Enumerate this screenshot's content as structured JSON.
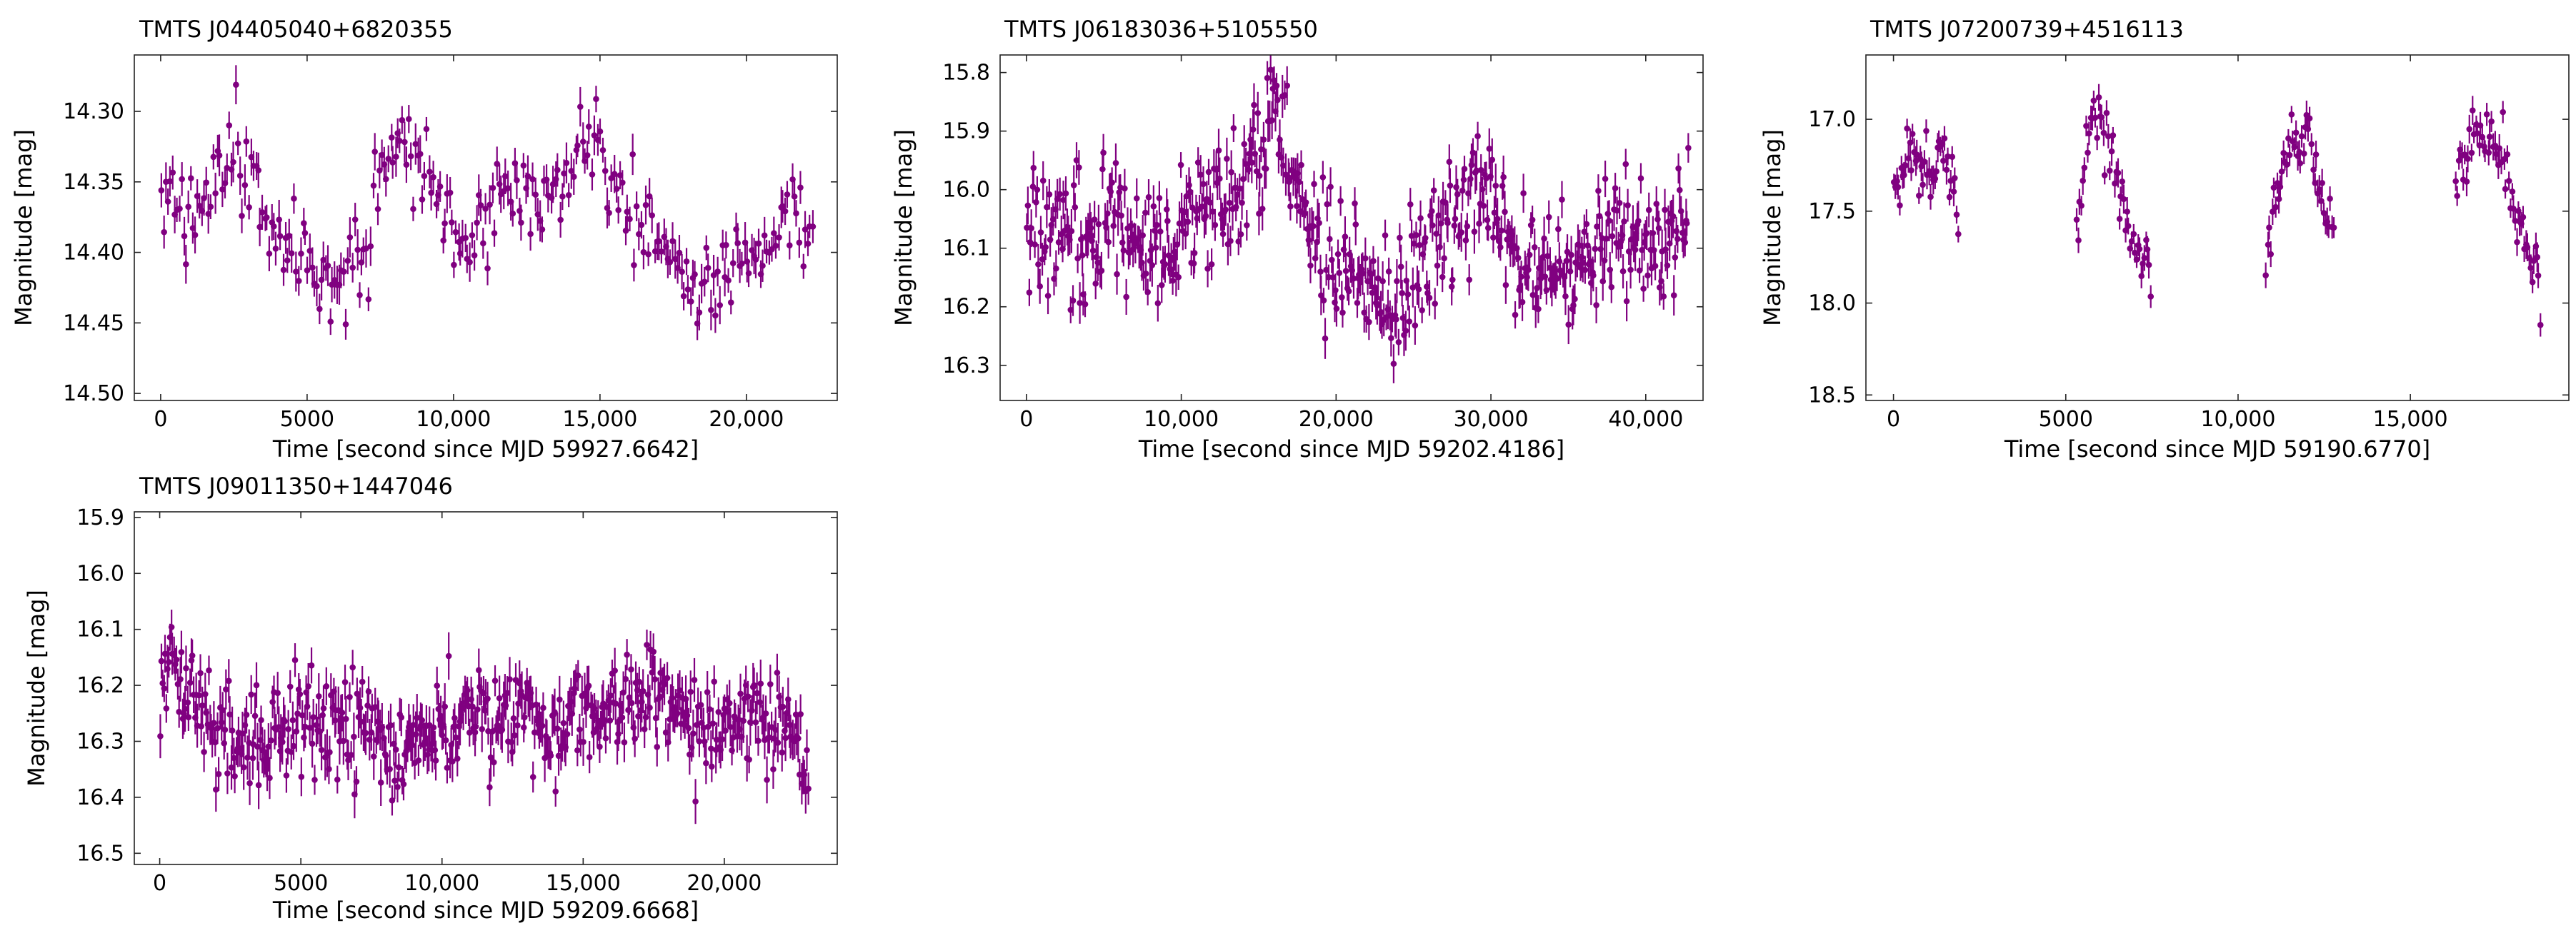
{
  "figure": {
    "accent_color": "#800080"
  },
  "chart_data": [
    {
      "type": "scatter",
      "title": "TMTS J04405040+6820355",
      "xlabel": "Time [second since MJD 59927.6642]",
      "ylabel": "Magnitude [mag]",
      "xlim": [
        -900,
        23100
      ],
      "ylim": [
        14.505,
        14.26
      ],
      "y_inverted": true,
      "xticks": [
        0,
        5000,
        10000,
        15000,
        20000
      ],
      "xtick_labels": [
        "0",
        "5000",
        "10,000",
        "15,000",
        "20,000"
      ],
      "yticks": [
        14.3,
        14.35,
        14.4,
        14.45,
        14.5
      ],
      "ytick_labels": [
        "14.30",
        "14.35",
        "14.40",
        "14.45",
        "14.50"
      ],
      "series": [
        {
          "color": "#800080",
          "marker": "circle",
          "error_bars": true,
          "x_start": 0,
          "x_end": 22300,
          "n_points": 290,
          "error": 0.011,
          "trend_x": [
            0,
            1000,
            1800,
            2400,
            3200,
            4200,
            5200,
            6200,
            6900,
            7600,
            8300,
            9000,
            9800,
            10600,
            11600,
            12600,
            13600,
            14500,
            15200,
            16000,
            17000,
            17800,
            18600,
            19400,
            20300,
            21200,
            22300
          ],
          "trend_y": [
            14.37,
            14.37,
            14.35,
            14.32,
            14.36,
            14.39,
            14.41,
            14.43,
            14.4,
            14.34,
            14.32,
            14.34,
            14.38,
            14.39,
            14.37,
            14.36,
            14.35,
            14.32,
            14.34,
            14.37,
            14.39,
            14.42,
            14.43,
            14.41,
            14.4,
            14.38,
            14.37
          ],
          "scatter_sd": 0.016,
          "seed": 11
        }
      ]
    },
    {
      "type": "scatter",
      "title": "TMTS J06183036+5105550",
      "xlabel": "Time [second since MJD 59202.4186]",
      "ylabel": "Magnitude [mag]",
      "xlim": [
        -1700,
        43700
      ],
      "ylim": [
        16.36,
        15.77
      ],
      "y_inverted": true,
      "xticks": [
        0,
        10000,
        20000,
        30000,
        40000
      ],
      "xtick_labels": [
        "0",
        "10,000",
        "20,000",
        "30,000",
        "40,000"
      ],
      "yticks": [
        15.8,
        15.9,
        16.0,
        16.1,
        16.2,
        16.3
      ],
      "ytick_labels": [
        "15.8",
        "15.9",
        "16.0",
        "16.1",
        "16.2",
        "16.3"
      ],
      "series": [
        {
          "color": "#800080",
          "marker": "circle",
          "error_bars": true,
          "x_start": 0,
          "x_end": 42800,
          "n_points": 560,
          "error": 0.028,
          "trend_x": [
            0,
            3000,
            6000,
            9000,
            12000,
            15000,
            16000,
            18000,
            21000,
            24000,
            27000,
            29000,
            32000,
            35000,
            38000,
            41000,
            42800
          ],
          "trend_y": [
            16.05,
            16.09,
            16.07,
            16.1,
            16.02,
            15.98,
            15.86,
            16.05,
            16.15,
            16.2,
            16.08,
            16.0,
            16.12,
            16.14,
            16.08,
            16.1,
            16.04
          ],
          "scatter_sd": 0.055,
          "seed": 22
        }
      ]
    },
    {
      "type": "scatter",
      "title": "TMTS J07200739+4516113",
      "xlabel": "Time [second since MJD 59190.6770]",
      "ylabel": "Magnitude [mag]",
      "xlim": [
        -800,
        19600
      ],
      "ylim": [
        18.53,
        16.65
      ],
      "y_inverted": true,
      "xticks": [
        0,
        5000,
        10000,
        15000
      ],
      "xtick_labels": [
        "0",
        "5000",
        "10,000",
        "15,000"
      ],
      "yticks": [
        17.0,
        17.5,
        18.0,
        18.5
      ],
      "ytick_labels": [
        "17.0",
        "17.5",
        "18.0",
        "18.5"
      ],
      "series": [
        {
          "color": "#800080",
          "marker": "circle",
          "error_bars": true,
          "segments": [
            {
              "x_start": 0,
              "x_end": 1900,
              "n_points": 45,
              "trend_x": [
                0,
                500,
                1000,
                1500,
                1900
              ],
              "trend_y": [
                17.4,
                17.15,
                17.3,
                17.1,
                17.6
              ]
            },
            {
              "x_start": 5300,
              "x_end": 7500,
              "n_points": 48,
              "trend_x": [
                5300,
                5800,
                6300,
                6800,
                7500
              ],
              "trend_y": [
                17.7,
                16.9,
                17.2,
                17.6,
                17.85
              ]
            },
            {
              "x_start": 10800,
              "x_end": 12800,
              "n_points": 44,
              "trend_x": [
                10800,
                11400,
                11900,
                12400,
                12800
              ],
              "trend_y": [
                17.7,
                17.2,
                17.0,
                17.4,
                17.6
              ]
            },
            {
              "x_start": 16300,
              "x_end": 18800,
              "n_points": 55,
              "trend_x": [
                16300,
                16900,
                17500,
                18000,
                18800
              ],
              "trend_y": [
                17.3,
                17.1,
                17.05,
                17.5,
                17.9
              ]
            }
          ],
          "error": 0.06,
          "scatter_sd": 0.09,
          "seed": 33
        }
      ]
    },
    {
      "type": "scatter",
      "title": "TMTS J09011350+1447046",
      "xlabel": "Time [second since MJD 59209.6668]",
      "ylabel": "Magnitude [mag]",
      "xlim": [
        -900,
        24000
      ],
      "ylim": [
        16.52,
        15.89
      ],
      "y_inverted": true,
      "xticks": [
        0,
        5000,
        10000,
        15000,
        20000
      ],
      "xtick_labels": [
        "0",
        "5000",
        "10,000",
        "15,000",
        "20,000"
      ],
      "yticks": [
        15.9,
        16.0,
        16.1,
        16.2,
        16.3,
        16.4,
        16.5
      ],
      "ytick_labels": [
        "15.9",
        "16.0",
        "16.1",
        "16.2",
        "16.3",
        "16.4",
        "16.5"
      ],
      "series": [
        {
          "color": "#800080",
          "marker": "circle",
          "error_bars": true,
          "x_start": 0,
          "x_end": 23000,
          "n_points": 520,
          "error": 0.032,
          "trend_x": [
            0,
            400,
            1500,
            3000,
            5000,
            7000,
            8500,
            10000,
            12000,
            14000,
            16000,
            17500,
            19000,
            21000,
            22500,
            23000
          ],
          "trend_y": [
            16.22,
            16.15,
            16.27,
            16.32,
            16.25,
            16.28,
            16.33,
            16.27,
            16.26,
            16.27,
            16.24,
            16.22,
            16.27,
            16.26,
            16.28,
            16.38
          ],
          "scatter_sd": 0.045,
          "seed": 44
        }
      ]
    }
  ]
}
